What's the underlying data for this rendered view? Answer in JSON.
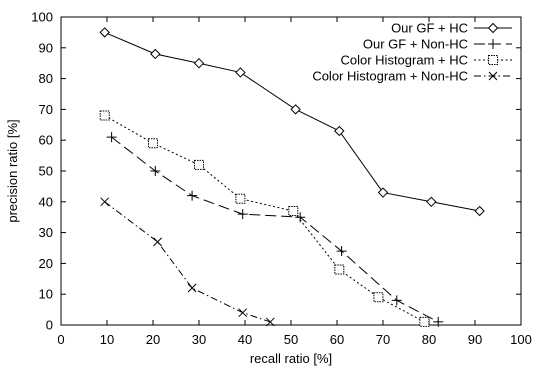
{
  "chart_data": {
    "type": "line",
    "title": "",
    "xlabel": "recall ratio [%]",
    "ylabel": "precision ratio [%]",
    "xlim": [
      0,
      100
    ],
    "ylim": [
      0,
      100
    ],
    "xticks": [
      0,
      10,
      20,
      30,
      40,
      50,
      60,
      70,
      80,
      90,
      100
    ],
    "yticks": [
      0,
      10,
      20,
      30,
      40,
      50,
      60,
      70,
      80,
      90,
      100
    ],
    "grid": false,
    "legend_position": "top-right",
    "series": [
      {
        "name": "Our GF + HC",
        "line_style": "solid",
        "marker": "diamond",
        "points": [
          [
            9.5,
            95
          ],
          [
            20.5,
            88
          ],
          [
            30,
            85
          ],
          [
            39,
            82
          ],
          [
            51,
            70
          ],
          [
            60.5,
            63
          ],
          [
            70,
            43
          ],
          [
            80.5,
            40
          ],
          [
            91,
            37
          ]
        ]
      },
      {
        "name": "Our GF + Non-HC",
        "line_style": "long-dash",
        "marker": "plus",
        "points": [
          [
            11,
            61
          ],
          [
            20.5,
            50
          ],
          [
            28.5,
            42
          ],
          [
            39.5,
            36
          ],
          [
            52,
            35
          ],
          [
            61,
            24
          ],
          [
            73,
            8
          ],
          [
            82,
            1
          ]
        ]
      },
      {
        "name": "Color Histogram + HC",
        "line_style": "dotted",
        "marker": "square",
        "points": [
          [
            9.5,
            68
          ],
          [
            20,
            59
          ],
          [
            30,
            52
          ],
          [
            39,
            41
          ],
          [
            50.5,
            37
          ],
          [
            60.5,
            18
          ],
          [
            69,
            9
          ],
          [
            79,
            1
          ]
        ]
      },
      {
        "name": "Color Histogram + Non-HC",
        "line_style": "dash-dot",
        "marker": "x",
        "points": [
          [
            9.5,
            40
          ],
          [
            21,
            27
          ],
          [
            28.5,
            12
          ],
          [
            39.5,
            4
          ],
          [
            45.5,
            1
          ]
        ]
      }
    ]
  }
}
